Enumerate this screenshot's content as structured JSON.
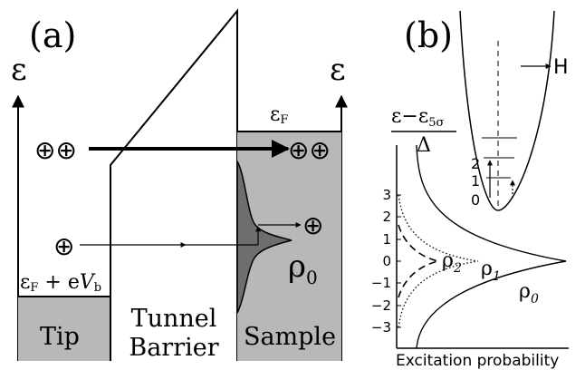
{
  "panel_a": {
    "label": "(a)",
    "energy_axis_left": "ε",
    "energy_axis_right": "ε",
    "fermi_sample": {
      "main": "ε",
      "sub": "F"
    },
    "fermi_tip": {
      "main": "ε",
      "sub": "F",
      "rest": " + e",
      "v": "V",
      "vsub": "b"
    },
    "tip_label": "Tip",
    "barrier_label_1": "Tunnel",
    "barrier_label_2": "Barrier",
    "sample_label": "Sample",
    "charges_upper_left": "⊕⊕",
    "charges_upper_right": "⊕⊕",
    "charge_lower_left": "⊕",
    "charge_lower_right": "⊕",
    "dos_label": {
      "main": "ρ",
      "sub": "0"
    },
    "colors": {
      "metal_fill": "#b8b8b8",
      "dos_fill": "#6e6e6e"
    }
  },
  "panel_b": {
    "label": "(b)",
    "yaxis_label_numerator": {
      "main": "ε−ε",
      "sub": "5σ"
    },
    "yaxis_label_denominator": "Δ",
    "y_ticks": [
      "3",
      "2",
      "1",
      "0",
      "−1",
      "−2",
      "−3"
    ],
    "xaxis_label": "Excitation probability",
    "field_label": "H",
    "well_levels": [
      "2",
      "1",
      "0"
    ],
    "curve_labels": [
      {
        "main": "ρ",
        "sub": "2"
      },
      {
        "main": "ρ",
        "sub": "1"
      },
      {
        "main": "ρ",
        "sub": "0"
      }
    ]
  }
}
